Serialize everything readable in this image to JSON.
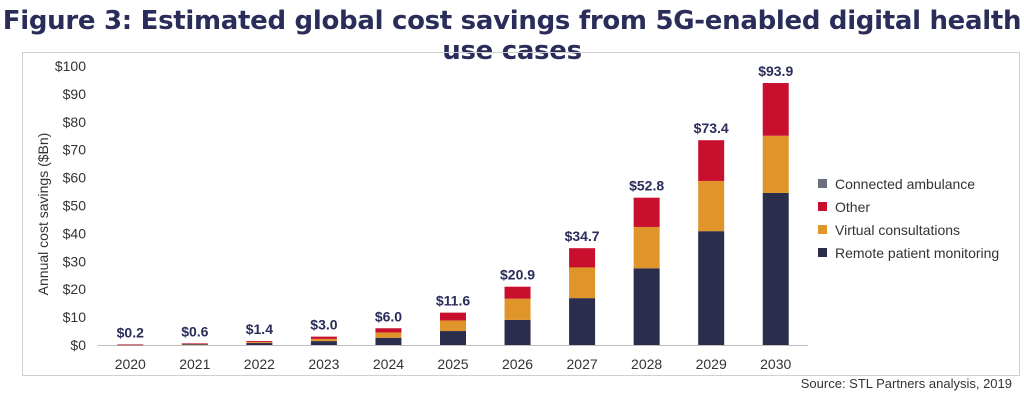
{
  "title": "Figure 3: Estimated global cost savings from 5G-enabled digital health use cases",
  "source": "Source: STL Partners analysis, 2019",
  "colors": {
    "remote": "#2b2d4d",
    "virtual": "#e0952a",
    "other": "#c8102e",
    "ambulance": "#6b6e7c"
  },
  "chart_data": {
    "type": "bar",
    "stacked": true,
    "categories": [
      "2020",
      "2021",
      "2022",
      "2023",
      "2024",
      "2025",
      "2026",
      "2027",
      "2028",
      "2029",
      "2030"
    ],
    "series": [
      {
        "name": "Remote patient monitoring",
        "color": "#2b2d4d",
        "values": [
          0.1,
          0.3,
          0.7,
          1.4,
          2.6,
          5.0,
          9.0,
          16.8,
          27.5,
          40.8,
          54.5
        ]
      },
      {
        "name": "Virtual consultations",
        "color": "#e0952a",
        "values": [
          0.05,
          0.15,
          0.35,
          0.8,
          1.9,
          3.8,
          7.6,
          11.0,
          14.8,
          18.0,
          20.5
        ]
      },
      {
        "name": "Other",
        "color": "#c8102e",
        "values": [
          0.05,
          0.15,
          0.35,
          0.8,
          1.5,
          2.8,
          4.3,
          6.9,
          10.5,
          14.6,
          18.9
        ]
      },
      {
        "name": "Connected ambulance",
        "color": "#6b6e7c",
        "values": [
          0.0,
          0.0,
          0.0,
          0.0,
          0.0,
          0.0,
          0.0,
          0.0,
          0.0,
          0.0,
          0.0
        ]
      }
    ],
    "totals": [
      "$0.2",
      "$0.6",
      "$1.4",
      "$3.0",
      "$6.0",
      "$11.6",
      "$20.9",
      "$34.7",
      "$52.8",
      "$73.4",
      "$93.9"
    ],
    "total_values": [
      0.2,
      0.6,
      1.4,
      3.0,
      6.0,
      11.6,
      20.9,
      34.7,
      52.8,
      73.4,
      93.9
    ],
    "ylabel": "Annual  cost savings ($Bn)",
    "yticks": [
      "$0",
      "$10",
      "$20",
      "$30",
      "$40",
      "$50",
      "$60",
      "$70",
      "$80",
      "$90",
      "$100"
    ],
    "ylim": [
      0,
      100
    ],
    "legend_position": "right",
    "legend": [
      "Connected ambulance",
      "Other",
      "Virtual consultations",
      "Remote patient monitoring"
    ]
  }
}
